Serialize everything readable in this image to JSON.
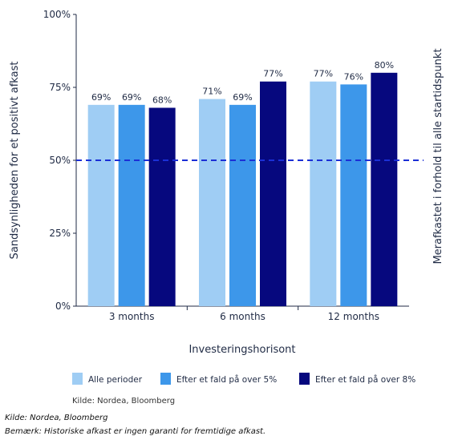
{
  "chart_data": {
    "type": "bar",
    "categories": [
      "3 months",
      "6 months",
      "12 months"
    ],
    "series": [
      {
        "name": "Alle perioder",
        "values": [
          69,
          71,
          77
        ],
        "color": "#9fcdf4"
      },
      {
        "name": "Efter et fald på over 5%",
        "values": [
          69,
          69,
          76
        ],
        "color": "#3d97ea"
      },
      {
        "name": "Efter et fald på over 8%",
        "values": [
          68,
          77,
          80
        ],
        "color": "#06087e"
      }
    ],
    "data_labels": [
      [
        "69%",
        "69%",
        "68%"
      ],
      [
        "71%",
        "69%",
        "77%"
      ],
      [
        "77%",
        "76%",
        "80%"
      ]
    ],
    "yticks": [
      "0%",
      "25%",
      "50%",
      "75%",
      "100%"
    ],
    "ytick_values": [
      0,
      25,
      50,
      75,
      100
    ],
    "ylim": [
      0,
      100
    ],
    "reference_line": {
      "value": 50,
      "style": "dashed",
      "color": "#1b2fd6"
    },
    "xlabel": "Investeringshorisont",
    "ylabel": "Sandsynligheden for et positivt afkast",
    "ylabel_right": "Merafkastet i forhold til alle startidspunkt",
    "legend_position": "bottom",
    "source_in_chart": "Kilde: Nordea, Bloomberg",
    "grid": false
  },
  "footnotes": {
    "source": "Kilde: Nordea, Bloomberg",
    "note": "Bemærk: Historiske afkast er ingen garanti for fremtidige afkast."
  }
}
